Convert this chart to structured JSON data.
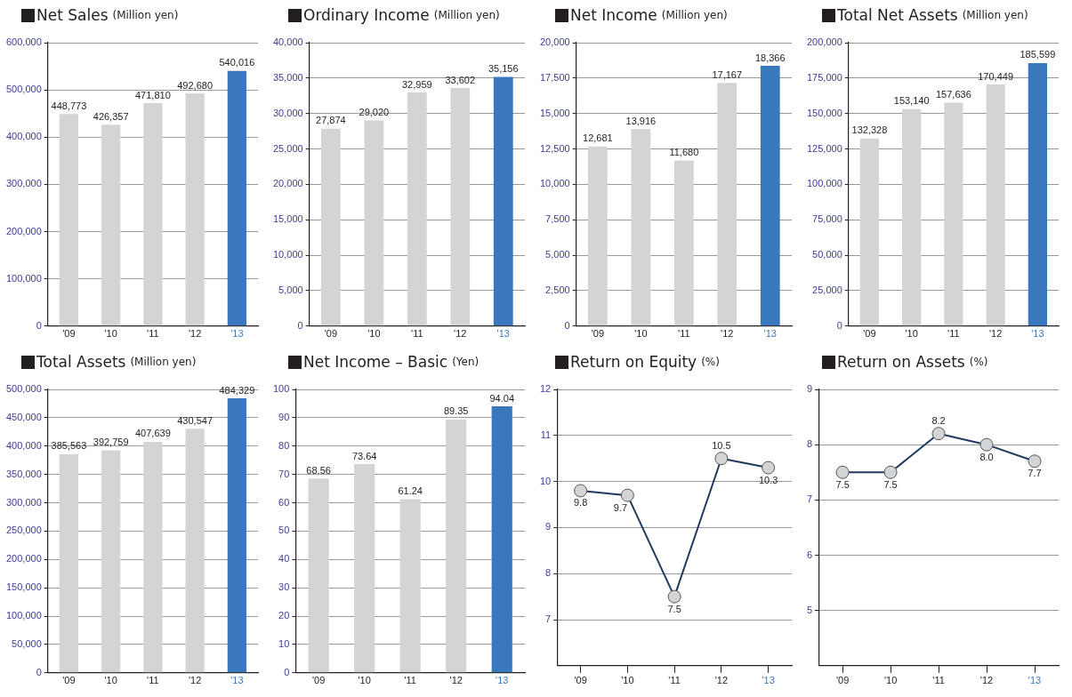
{
  "chart_data": [
    {
      "type": "bar",
      "title": "Net Sales",
      "subtitle": "(Million yen)",
      "categories": [
        "'09",
        "'10",
        "'11",
        "'12",
        "'13"
      ],
      "values": [
        448773,
        426357,
        471810,
        492680,
        540016
      ],
      "value_labels": [
        "448,773",
        "426,357",
        "471,810",
        "492,680",
        "540,016"
      ],
      "colors": [
        "#d3d4d5",
        "#d3d4d5",
        "#d3d4d5",
        "#d3d4d5",
        "#3a78bd"
      ],
      "ylim": [
        0,
        600000
      ],
      "yticks": [
        {
          "value": 0,
          "label": "0"
        },
        {
          "value": 100000,
          "label": "100,000"
        },
        {
          "value": 200000,
          "label": "200,000"
        },
        {
          "value": 300000,
          "label": "300,000"
        },
        {
          "value": 400000,
          "label": "400,000"
        },
        {
          "value": 500000,
          "label": "500,000"
        },
        {
          "value": 600000,
          "label": "600,000"
        }
      ],
      "grid": "y"
    },
    {
      "type": "bar",
      "title": "Ordinary Income",
      "subtitle": "(Million yen)",
      "categories": [
        "'09",
        "'10",
        "'11",
        "'12",
        "'13"
      ],
      "values": [
        27874,
        29020,
        32959,
        33602,
        35156
      ],
      "value_labels": [
        "27,874",
        "29,020",
        "32,959",
        "33,602",
        "35,156"
      ],
      "colors": [
        "#d3d4d5",
        "#d3d4d5",
        "#d3d4d5",
        "#d3d4d5",
        "#3a78bd"
      ],
      "ylim": [
        0,
        40000
      ],
      "yticks": [
        {
          "value": 0,
          "label": "0"
        },
        {
          "value": 5000,
          "label": "5,000"
        },
        {
          "value": 10000,
          "label": "10,000"
        },
        {
          "value": 15000,
          "label": "15,000"
        },
        {
          "value": 20000,
          "label": "20,000"
        },
        {
          "value": 25000,
          "label": "25,000"
        },
        {
          "value": 30000,
          "label": "30,000"
        },
        {
          "value": 35000,
          "label": "35,000"
        },
        {
          "value": 40000,
          "label": "40,000"
        }
      ],
      "grid": "y"
    },
    {
      "type": "bar",
      "title": "Net Income",
      "subtitle": "(Million yen)",
      "categories": [
        "'09",
        "'10",
        "'11",
        "'12",
        "'13"
      ],
      "values": [
        12681,
        13916,
        11680,
        17167,
        18366
      ],
      "value_labels": [
        "12,681",
        "13,916",
        "11,680",
        "17,167",
        "18,366"
      ],
      "colors": [
        "#d3d4d5",
        "#d3d4d5",
        "#d3d4d5",
        "#d3d4d5",
        "#3a78bd"
      ],
      "ylim": [
        0,
        20000
      ],
      "yticks": [
        {
          "value": 0,
          "label": "0"
        },
        {
          "value": 2500,
          "label": "2,500"
        },
        {
          "value": 5000,
          "label": "5,000"
        },
        {
          "value": 7500,
          "label": "7,500"
        },
        {
          "value": 10000,
          "label": "10,000"
        },
        {
          "value": 12500,
          "label": "12,500"
        },
        {
          "value": 15000,
          "label": "15,000"
        },
        {
          "value": 17500,
          "label": "17,500"
        },
        {
          "value": 20000,
          "label": "20,000"
        }
      ],
      "grid": "y"
    },
    {
      "type": "bar",
      "title": "Total Net Assets",
      "subtitle": "(Million yen)",
      "categories": [
        "'09",
        "'10",
        "'11",
        "'12",
        "'13"
      ],
      "values": [
        132328,
        153140,
        157636,
        170449,
        185599
      ],
      "value_labels": [
        "132,328",
        "153,140",
        "157,636",
        "170,449",
        "185,599"
      ],
      "colors": [
        "#d3d4d5",
        "#d3d4d5",
        "#d3d4d5",
        "#d3d4d5",
        "#3a78bd"
      ],
      "ylim": [
        0,
        200000
      ],
      "yticks": [
        {
          "value": 0,
          "label": "0"
        },
        {
          "value": 25000,
          "label": "25,000"
        },
        {
          "value": 50000,
          "label": "50,000"
        },
        {
          "value": 75000,
          "label": "75,000"
        },
        {
          "value": 100000,
          "label": "100,000"
        },
        {
          "value": 125000,
          "label": "125,000"
        },
        {
          "value": 150000,
          "label": "150,000"
        },
        {
          "value": 175000,
          "label": "175,000"
        },
        {
          "value": 200000,
          "label": "200,000"
        }
      ],
      "grid": "y"
    },
    {
      "type": "bar",
      "title": "Total Assets",
      "subtitle": "(Million yen)",
      "categories": [
        "'09",
        "'10",
        "'11",
        "'12",
        "'13"
      ],
      "values": [
        385563,
        392759,
        407639,
        430547,
        484329
      ],
      "value_labels": [
        "385,563",
        "392,759",
        "407,639",
        "430,547",
        "484,329"
      ],
      "colors": [
        "#d3d4d5",
        "#d3d4d5",
        "#d3d4d5",
        "#d3d4d5",
        "#3a78bd"
      ],
      "ylim": [
        0,
        500000
      ],
      "yticks": [
        {
          "value": 0,
          "label": "0"
        },
        {
          "value": 50000,
          "label": "50,000"
        },
        {
          "value": 100000,
          "label": "100,000"
        },
        {
          "value": 150000,
          "label": "150,000"
        },
        {
          "value": 200000,
          "label": "200,000"
        },
        {
          "value": 250000,
          "label": "250,000"
        },
        {
          "value": 300000,
          "label": "300,000"
        },
        {
          "value": 350000,
          "label": "350,000"
        },
        {
          "value": 400000,
          "label": "400,000"
        },
        {
          "value": 450000,
          "label": "450,000"
        },
        {
          "value": 500000,
          "label": "500,000"
        }
      ],
      "grid": "y"
    },
    {
      "type": "bar",
      "title": "Net Income – Basic",
      "subtitle": "(Yen)",
      "categories": [
        "'09",
        "'10",
        "'11",
        "'12",
        "'13"
      ],
      "values": [
        68.56,
        73.64,
        61.24,
        89.35,
        94.04
      ],
      "colors": [
        "#d3d4d5",
        "#d3d4d5",
        "#d3d4d5",
        "#d3d4d5",
        "#3a78bd"
      ],
      "ylim": [
        0,
        100
      ],
      "yticks": [
        0,
        10,
        20,
        30,
        40,
        50,
        60,
        70,
        80,
        90,
        100
      ],
      "grid": "y",
      "data_labels": true
    },
    {
      "type": "line",
      "title": "Return on Equity",
      "subtitle": "(%)",
      "categories": [
        "'09",
        "'10",
        "'11",
        "'12",
        "'13"
      ],
      "series": [
        {
          "color": "#1f3a5f",
          "values": [
            9.8,
            9.7,
            7.5,
            10.5,
            10.3
          ]
        }
      ],
      "marker": "circle",
      "ylim": [
        6,
        12
      ],
      "yticks": [
        7,
        8,
        9,
        10,
        11,
        12
      ],
      "grid": "y",
      "data_labels": true
    },
    {
      "type": "line",
      "title": "Return on Assets",
      "subtitle": "(%)",
      "categories": [
        "'09",
        "'10",
        "'11",
        "'12",
        "'13"
      ],
      "series": [
        {
          "color": "#1f3a5f",
          "values": [
            7.5,
            7.5,
            8.2,
            8.0,
            7.7
          ],
          "value_labels": [
            "7.5",
            "7.5",
            "8.2",
            "8.0",
            "7.7"
          ]
        }
      ],
      "marker": "circle",
      "ylim": [
        4,
        9
      ],
      "yticks": [
        5,
        6,
        7,
        8,
        9
      ],
      "grid": "y"
    }
  ]
}
